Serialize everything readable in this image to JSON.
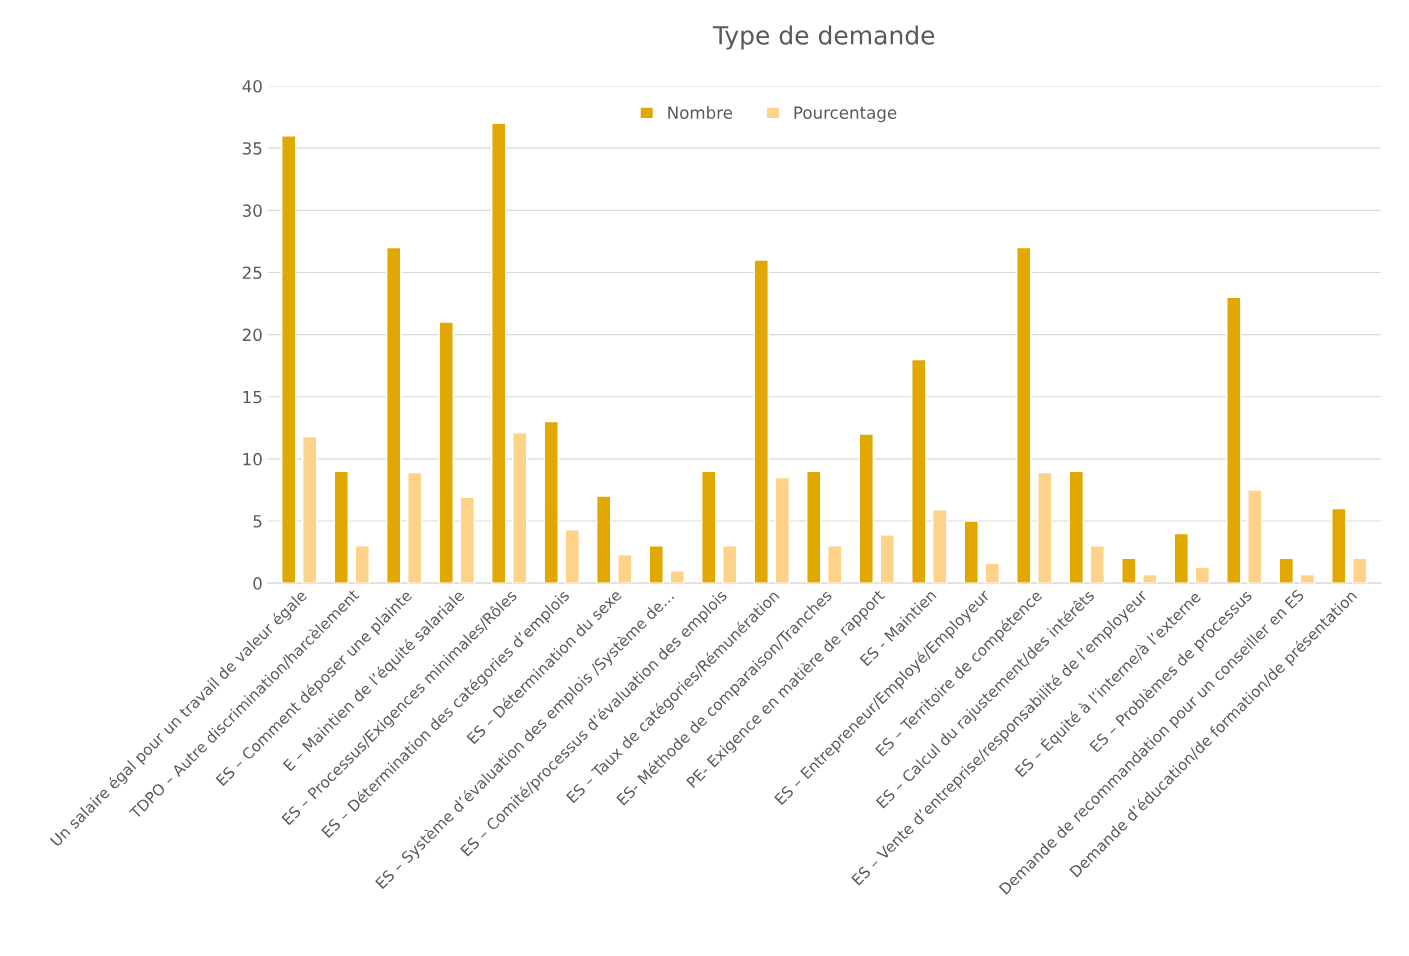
{
  "chart_data": {
    "type": "bar",
    "title": "Type de demande",
    "categories": [
      "Un salaire égal pour un travail de valeur égale",
      "TDPO – Autre discrimination/harcèlement",
      "ES – Comment déposer une plainte",
      "E – Maintien de l’équité salariale",
      "ES – Processus/Exigences minimales/Rôles",
      "ES – Détermination des catégories d’emplois",
      "ES – Détermination du sexe",
      "ES – Système d’évaluation des emplois /Système de…",
      "ES – Comité/processus d’évaluation des emplois",
      "ES – Taux de catégories/Rémunération",
      "ES- Méthode de comparaison/Tranches",
      "PE- Exigence en matière de rapport",
      "ES - Maintien",
      "ES – Entrepreneur/Employé/Employeur",
      "ES – Territoire de compétence",
      "ES – Calcul du rajustement/des intérêts",
      "ES – Vente d’entreprise/responsabilité de l’employeur",
      "ES – Équité à l’interne/à l’externe",
      "ES – Problèmes de processus",
      "Demande de recommandation pour un conseiller en ES",
      "Demande d’éducation/de formation/de présentation"
    ],
    "series": [
      {
        "name": "Nombre",
        "color": "#e0a800",
        "values": [
          36,
          9,
          27,
          21,
          37,
          13,
          7,
          3,
          9,
          26,
          9,
          12,
          18,
          5,
          27,
          9,
          2,
          4,
          23,
          2,
          6
        ]
      },
      {
        "name": "Pourcentage",
        "color": "#ffd28a",
        "values": [
          11.8,
          3.0,
          8.9,
          6.9,
          12.1,
          4.3,
          2.3,
          1.0,
          3.0,
          8.5,
          3.0,
          3.9,
          5.9,
          1.6,
          8.9,
          3.0,
          0.7,
          1.3,
          7.5,
          0.7,
          2.0
        ]
      }
    ],
    "ylim": [
      0,
      40
    ],
    "yticks": [
      0,
      5,
      10,
      15,
      20,
      25,
      30,
      35,
      40
    ],
    "grid": "y",
    "legend": "top"
  }
}
